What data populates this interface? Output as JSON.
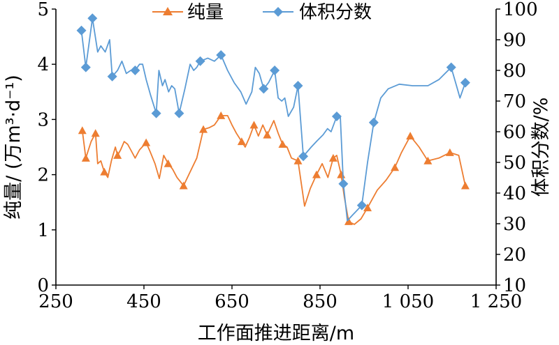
{
  "chart_data": {
    "type": "line",
    "xlabel": "工作面推进距离/m",
    "ylabel_left": "纯量/ (万m³·d⁻¹)",
    "ylabel_right": "体积分数/%",
    "xlim": [
      250,
      1250
    ],
    "ylim_left": [
      0,
      5
    ],
    "ylim_right": [
      10,
      100
    ],
    "x_ticks": [
      250,
      450,
      650,
      850,
      1050,
      1250
    ],
    "x_tick_labels": [
      "250",
      "450",
      "650",
      "850",
      "1 050",
      "1 250"
    ],
    "y_left_ticks": [
      "0",
      "1",
      "2",
      "3",
      "4",
      "5"
    ],
    "y_right_ticks": [
      "10",
      "20",
      "30",
      "40",
      "50",
      "60",
      "70",
      "80",
      "90",
      "100"
    ],
    "grid": false,
    "legend_position": "top-center",
    "series": [
      {
        "name": "纯量",
        "axis": "left",
        "color": "#ED7D31",
        "marker": "triangle",
        "points": [
          [
            310,
            2.8
          ],
          [
            318,
            2.3
          ],
          [
            330,
            2.6
          ],
          [
            340,
            2.75
          ],
          [
            345,
            2.2
          ],
          [
            352,
            2.25
          ],
          [
            360,
            2.05
          ],
          [
            368,
            1.95
          ],
          [
            376,
            2.25
          ],
          [
            385,
            2.5
          ],
          [
            390,
            2.35
          ],
          [
            397,
            2.45
          ],
          [
            405,
            2.6
          ],
          [
            413,
            2.55
          ],
          [
            420,
            2.45
          ],
          [
            430,
            2.3
          ],
          [
            440,
            2.45
          ],
          [
            455,
            2.58
          ],
          [
            465,
            2.4
          ],
          [
            475,
            2.2
          ],
          [
            485,
            1.93
          ],
          [
            495,
            2.35
          ],
          [
            505,
            2.2
          ],
          [
            515,
            2.1
          ],
          [
            525,
            1.95
          ],
          [
            540,
            1.8
          ],
          [
            555,
            2.05
          ],
          [
            570,
            2.3
          ],
          [
            585,
            2.82
          ],
          [
            598,
            2.85
          ],
          [
            610,
            2.9
          ],
          [
            625,
            3.07
          ],
          [
            640,
            3.07
          ],
          [
            650,
            2.9
          ],
          [
            660,
            2.75
          ],
          [
            672,
            2.6
          ],
          [
            680,
            2.5
          ],
          [
            690,
            2.68
          ],
          [
            700,
            2.9
          ],
          [
            710,
            2.7
          ],
          [
            720,
            2.9
          ],
          [
            730,
            2.72
          ],
          [
            745,
            2.98
          ],
          [
            755,
            2.75
          ],
          [
            765,
            2.55
          ],
          [
            775,
            2.5
          ],
          [
            785,
            2.3
          ],
          [
            800,
            2.25
          ],
          [
            815,
            1.43
          ],
          [
            828,
            1.75
          ],
          [
            842,
            2.0
          ],
          [
            855,
            2.2
          ],
          [
            868,
            1.95
          ],
          [
            880,
            2.3
          ],
          [
            888,
            2.35
          ],
          [
            898,
            2.0
          ],
          [
            905,
            1.6
          ],
          [
            915,
            1.15
          ],
          [
            928,
            1.1
          ],
          [
            943,
            1.2
          ],
          [
            958,
            1.4
          ],
          [
            980,
            1.72
          ],
          [
            1000,
            1.9
          ],
          [
            1020,
            2.13
          ],
          [
            1035,
            2.4
          ],
          [
            1055,
            2.7
          ],
          [
            1075,
            2.5
          ],
          [
            1095,
            2.25
          ],
          [
            1120,
            2.3
          ],
          [
            1145,
            2.4
          ],
          [
            1165,
            2.35
          ],
          [
            1180,
            1.8
          ]
        ]
      },
      {
        "name": "体积分数",
        "axis": "right",
        "color": "#5B9BD5",
        "marker": "diamond",
        "points": [
          [
            308,
            93
          ],
          [
            318,
            81
          ],
          [
            333,
            97
          ],
          [
            345,
            86
          ],
          [
            352,
            88
          ],
          [
            362,
            86
          ],
          [
            372,
            90
          ],
          [
            378,
            78
          ],
          [
            390,
            80
          ],
          [
            400,
            83
          ],
          [
            410,
            79
          ],
          [
            420,
            80
          ],
          [
            430,
            80
          ],
          [
            440,
            82
          ],
          [
            447,
            82
          ],
          [
            455,
            77
          ],
          [
            465,
            72
          ],
          [
            478,
            66
          ],
          [
            484,
            80
          ],
          [
            492,
            75
          ],
          [
            498,
            77
          ],
          [
            506,
            73
          ],
          [
            513,
            75
          ],
          [
            520,
            74
          ],
          [
            530,
            66
          ],
          [
            543,
            74
          ],
          [
            555,
            82
          ],
          [
            563,
            80
          ],
          [
            570,
            81
          ],
          [
            578,
            83
          ],
          [
            595,
            84
          ],
          [
            610,
            83
          ],
          [
            625,
            85
          ],
          [
            640,
            80
          ],
          [
            655,
            76
          ],
          [
            670,
            73
          ],
          [
            682,
            69
          ],
          [
            695,
            73
          ],
          [
            703,
            81
          ],
          [
            712,
            79
          ],
          [
            722,
            74
          ],
          [
            733,
            76
          ],
          [
            747,
            80
          ],
          [
            755,
            71
          ],
          [
            763,
            70
          ],
          [
            770,
            71
          ],
          [
            778,
            65
          ],
          [
            790,
            68
          ],
          [
            800,
            75
          ],
          [
            812,
            52
          ],
          [
            830,
            55
          ],
          [
            843,
            57
          ],
          [
            857,
            59
          ],
          [
            867,
            61
          ],
          [
            875,
            60
          ],
          [
            888,
            65
          ],
          [
            896,
            65
          ],
          [
            903,
            43
          ],
          [
            912,
            31
          ],
          [
            925,
            33
          ],
          [
            945,
            36
          ],
          [
            958,
            50
          ],
          [
            972,
            63
          ],
          [
            988,
            71
          ],
          [
            1005,
            74
          ],
          [
            1030,
            75.5
          ],
          [
            1060,
            75
          ],
          [
            1095,
            75
          ],
          [
            1120,
            77
          ],
          [
            1148,
            81
          ],
          [
            1160,
            75
          ],
          [
            1168,
            71
          ],
          [
            1180,
            76
          ]
        ]
      }
    ]
  }
}
